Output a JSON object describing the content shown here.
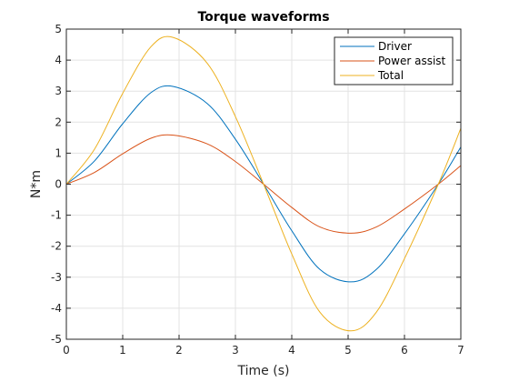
{
  "chart_data": {
    "type": "line",
    "title": "Torque waveforms",
    "xlabel": "Time (s)",
    "ylabel": "N*m",
    "xlim": [
      0,
      7
    ],
    "ylim": [
      -5,
      5
    ],
    "xticks": [
      0,
      1,
      2,
      3,
      4,
      5,
      6,
      7
    ],
    "yticks": [
      -5,
      -4,
      -3,
      -2,
      -1,
      0,
      1,
      2,
      3,
      4,
      5
    ],
    "grid": true,
    "legend_position": "top-right",
    "function_note": "",
    "series": [
      {
        "name": "Driver",
        "color": "#0072BD",
        "amplitude": 3.15
      },
      {
        "name": "Power assist",
        "color": "#D95319",
        "amplitude": 1.58
      },
      {
        "name": "Total",
        "color": "#EDB120",
        "amplitude": 4.73
      }
    ],
    "sample_points": {
      "x": [
        0,
        0.5,
        1,
        1.5,
        1.9,
        2.5,
        3,
        3.5,
        4,
        4.5,
        5.05,
        5.5,
        6,
        6.6,
        7
      ],
      "Driver": [
        0,
        0.75,
        1.95,
        2.95,
        3.15,
        2.6,
        1.45,
        0,
        -1.5,
        -2.75,
        -3.15,
        -2.75,
        -1.6,
        0,
        1.2
      ],
      "Power assist": [
        0,
        0.38,
        0.98,
        1.48,
        1.58,
        1.3,
        0.73,
        0,
        -0.75,
        -1.38,
        -1.58,
        -1.38,
        -0.8,
        0,
        0.6
      ],
      "Total": [
        0,
        1.13,
        2.93,
        4.43,
        4.73,
        3.9,
        2.18,
        0,
        -2.25,
        -4.13,
        -4.73,
        -4.13,
        -2.4,
        0,
        1.8
      ]
    }
  }
}
